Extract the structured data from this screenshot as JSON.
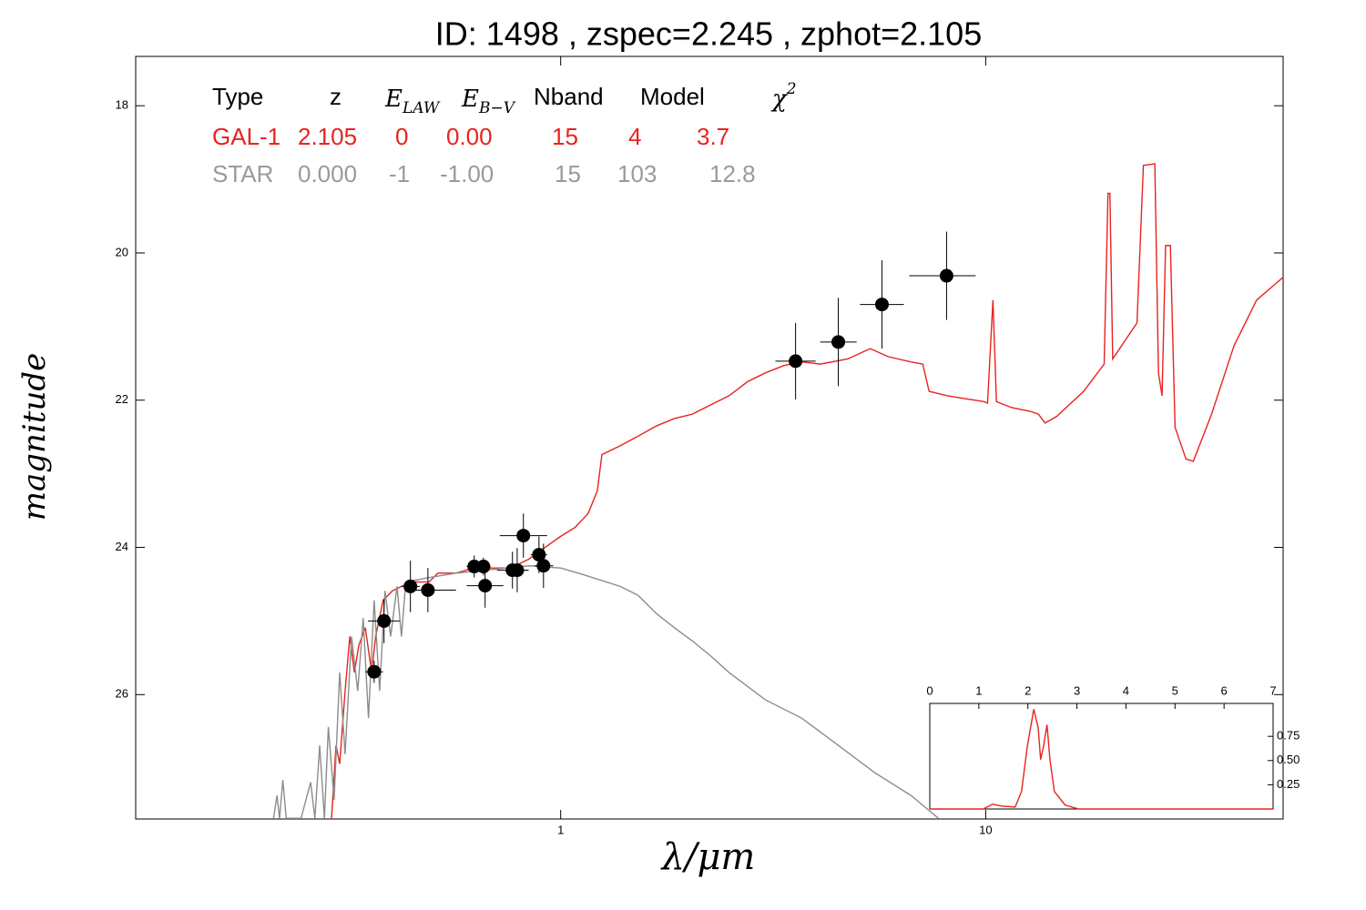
{
  "chart_data": [
    {
      "type": "sed",
      "title": "ID:  1498  , zspec=2.245 , zphot=2.105",
      "xlabel": "λ/μm",
      "ylabel": "magnitude",
      "log_x": true,
      "y_inverted": true,
      "xlim": [
        0.1,
        50.1
      ],
      "ylim": [
        17.33,
        27.69
      ],
      "xticks": [
        1,
        10
      ],
      "yticks": [
        18,
        20,
        22,
        24,
        26
      ],
      "fit_table": {
        "header": [
          "Type",
          "z",
          {
            "text": "E",
            "sub": "LAW"
          },
          {
            "text": "E",
            "sub": "B−V"
          },
          "Nband",
          "Model",
          {
            "text": "χ",
            "sup": "2"
          }
        ],
        "rows": [
          {
            "color": "#e8231f",
            "cells": [
              "GAL-1",
              "2.105",
              "0",
              "0.00",
              "15",
              "4",
              "3.7"
            ]
          },
          {
            "color": "#9a9a9a",
            "cells": [
              "STAR",
              "0.000",
              "-1",
              "-1.00",
              "15",
              "103",
              "12.8"
            ]
          }
        ]
      },
      "series": [
        {
          "kind": "line",
          "color": "#e8231f",
          "x": [
            0.289,
            0.296,
            0.302,
            0.311,
            0.319,
            0.327,
            0.335,
            0.347,
            0.359,
            0.367,
            0.382,
            0.402,
            0.422,
            0.454,
            0.49,
            0.514,
            0.567,
            0.626,
            0.691,
            0.762,
            0.841,
            0.929,
            1.0,
            1.08,
            1.16,
            1.22,
            1.25,
            1.38,
            1.52,
            1.68,
            1.85,
            2.04,
            2.26,
            2.49,
            2.75,
            3.03,
            3.35,
            3.69,
            4.08,
            4.73,
            5.35,
            5.9,
            6.67,
            7.11,
            7.36,
            8.13,
            8.97,
            9.9,
            10.1,
            10.4,
            10.6,
            11.5,
            12.7,
            13.3,
            13.8,
            14.7,
            17.0,
            19.0,
            19.4,
            19.6,
            19.9,
            22.7,
            23.5,
            25.0,
            25.5,
            26.0,
            26.5,
            27.2,
            27.9,
            29.6,
            30.8,
            34.0,
            38.4,
            43.4,
            50.1
          ],
          "values": [
            27.68,
            26.69,
            26.94,
            25.95,
            25.21,
            25.7,
            25.33,
            25.09,
            25.7,
            25.21,
            24.72,
            24.59,
            24.53,
            24.47,
            24.47,
            24.35,
            24.35,
            24.28,
            24.28,
            24.28,
            24.16,
            23.98,
            23.85,
            23.73,
            23.54,
            23.23,
            22.74,
            22.62,
            22.49,
            22.35,
            22.25,
            22.19,
            22.06,
            21.94,
            21.75,
            21.63,
            21.53,
            21.48,
            21.51,
            21.44,
            21.3,
            21.41,
            21.48,
            21.51,
            21.88,
            21.94,
            21.98,
            22.02,
            22.04,
            20.64,
            22.02,
            22.1,
            22.15,
            22.19,
            22.31,
            22.22,
            21.88,
            21.51,
            19.19,
            19.19,
            21.44,
            20.95,
            18.81,
            18.79,
            21.63,
            21.94,
            19.9,
            19.9,
            22.37,
            22.8,
            22.83,
            22.19,
            21.26,
            20.64,
            20.33
          ]
        },
        {
          "kind": "line",
          "color": "#8c8c8c",
          "x": [
            0.211,
            0.215,
            0.218,
            0.222,
            0.226,
            0.245,
            0.258,
            0.264,
            0.271,
            0.278,
            0.284,
            0.293,
            0.302,
            0.311,
            0.322,
            0.333,
            0.343,
            0.353,
            0.364,
            0.375,
            0.386,
            0.398,
            0.412,
            0.422,
            0.432,
            0.49,
            0.567,
            0.691,
            0.841,
            1.0,
            1.13,
            1.38,
            1.52,
            1.68,
            1.85,
            2.04,
            2.26,
            2.49,
            3.03,
            3.69,
            4.5,
            5.48,
            6.67,
            7.74
          ],
          "values": [
            27.68,
            27.37,
            27.68,
            27.16,
            27.68,
            27.68,
            27.19,
            27.68,
            26.69,
            27.68,
            26.44,
            27.43,
            25.7,
            26.81,
            25.21,
            25.95,
            24.96,
            26.32,
            24.72,
            25.95,
            24.59,
            25.21,
            24.53,
            25.21,
            24.47,
            24.41,
            24.35,
            24.3,
            24.25,
            24.28,
            24.37,
            24.53,
            24.65,
            24.9,
            25.09,
            25.27,
            25.48,
            25.7,
            26.07,
            26.32,
            26.69,
            27.06,
            27.37,
            27.68
          ]
        },
        {
          "kind": "points",
          "color": "#000000",
          "x": [
            0.364,
            0.384,
            0.443,
            0.487,
            0.626,
            0.658,
            0.664,
            0.77,
            0.79,
            0.817,
            0.889,
            0.911,
            3.57,
            4.5,
            5.7,
            8.09
          ],
          "values": [
            25.69,
            25.0,
            24.53,
            24.58,
            24.26,
            24.26,
            24.52,
            24.31,
            24.31,
            23.84,
            24.1,
            24.25,
            21.47,
            21.21,
            20.7,
            20.31
          ],
          "yerr": [
            0.15,
            0.3,
            0.35,
            0.3,
            0.15,
            0.12,
            0.3,
            0.25,
            0.3,
            0.3,
            0.25,
            0.3,
            0.52,
            0.6,
            0.6,
            0.6
          ],
          "x_lower": [
            0.347,
            0.352,
            0.422,
            0.437,
            0.601,
            0.632,
            0.601,
            0.708,
            0.744,
            0.719,
            0.85,
            0.867,
            3.2,
            4.08,
            5.06,
            6.61
          ],
          "x_upper": [
            0.382,
            0.418,
            0.466,
            0.567,
            0.651,
            0.684,
            0.733,
            0.834,
            0.841,
            0.929,
            0.929,
            0.961,
            3.98,
            4.97,
            6.42,
            9.47
          ]
        }
      ]
    },
    {
      "type": "line",
      "xlim": [
        0,
        7
      ],
      "ylim": [
        0,
        1.09
      ],
      "xticks": [
        0,
        1,
        2,
        3,
        4,
        5,
        6,
        7
      ],
      "yticks": [
        0.25,
        {
          "value": 0.5,
          "label": "0.50"
        },
        0.75
      ],
      "series": [
        {
          "color": "#e8231f",
          "x": [
            0,
            1.09,
            1.28,
            1.47,
            1.74,
            1.87,
            1.99,
            2.12,
            2.21,
            2.26,
            2.32,
            2.39,
            2.45,
            2.54,
            2.76,
            3.04,
            7
          ],
          "values": [
            0,
            0,
            0.05,
            0.03,
            0.02,
            0.18,
            0.65,
            1.03,
            0.84,
            0.51,
            0.65,
            0.87,
            0.51,
            0.18,
            0.04,
            0,
            0
          ]
        }
      ]
    }
  ]
}
